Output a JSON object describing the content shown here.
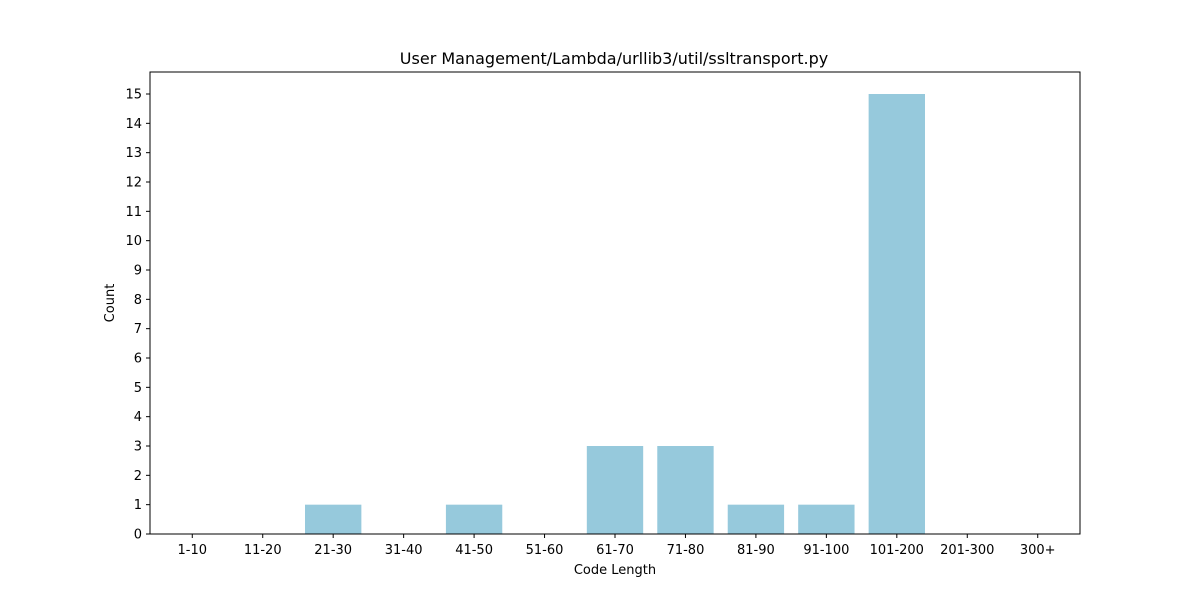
{
  "chart_data": {
    "type": "bar",
    "title": "User Management/Lambda/urllib3/util/ssltransport.py",
    "xlabel": "Code Length",
    "ylabel": "Count",
    "categories": [
      "1-10",
      "11-20",
      "21-30",
      "31-40",
      "41-50",
      "51-60",
      "61-70",
      "71-80",
      "81-90",
      "91-100",
      "101-200",
      "201-300",
      "300+"
    ],
    "values": [
      0,
      0,
      1,
      0,
      1,
      0,
      3,
      3,
      1,
      1,
      15,
      0,
      0
    ],
    "yticks": [
      0,
      1,
      2,
      3,
      4,
      5,
      6,
      7,
      8,
      9,
      10,
      11,
      12,
      13,
      14,
      15
    ],
    "ylim": [
      0,
      15.75
    ],
    "grid": false,
    "bar_color": "#96c9dc"
  }
}
